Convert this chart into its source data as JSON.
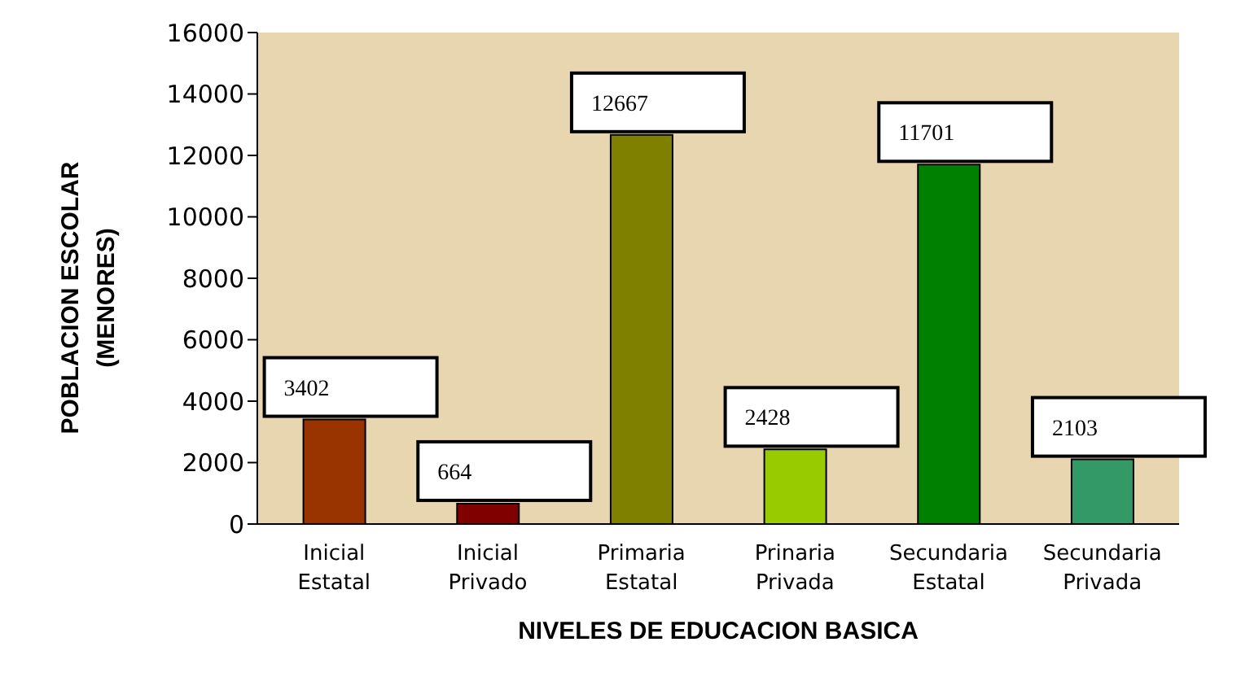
{
  "chart_data": {
    "type": "bar",
    "xlabel": "NIVELES DE EDUCACION BASICA",
    "ylabel": "POBLACION ESCOLAR (MENORES)",
    "categories": [
      "Inicial Estatal",
      "Inicial Privado",
      "Primaria Estatal",
      "Prinaria Privada",
      "Secundaria Estatal",
      "Secundaria Privada"
    ],
    "values": [
      3402,
      664,
      12667,
      2428,
      11701,
      2103
    ],
    "colors": [
      "#993300",
      "#800000",
      "#808000",
      "#99cc00",
      "#008000",
      "#339966"
    ],
    "ylim": [
      0,
      16000
    ],
    "yticks": [
      0,
      2000,
      4000,
      6000,
      8000,
      10000,
      12000,
      14000,
      16000
    ],
    "grid": false,
    "legend": false,
    "data_labels": true
  }
}
